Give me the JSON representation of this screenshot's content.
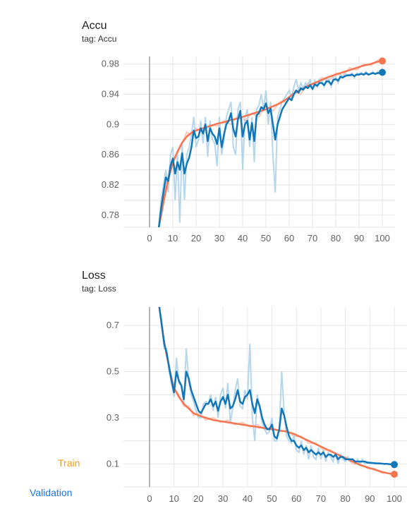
{
  "legend": {
    "train": {
      "label": "Train",
      "color": "#f29b1d"
    },
    "validation": {
      "label": "Validation",
      "color": "#1a73e8"
    }
  },
  "colors": {
    "train_line": "#f4754f",
    "train_light": "#f9c1b0",
    "val_line": "#1277b8",
    "val_light": "#a9d0e8",
    "grid": "#e6e6e6",
    "zero_axis": "#9e9e9e"
  },
  "chart_data": [
    {
      "type": "line",
      "title": "Accu",
      "subtitle": "tag: Accu",
      "xlim": [
        -10,
        103
      ],
      "ylim": [
        0.764,
        0.99
      ],
      "xticks": [
        0,
        10,
        20,
        30,
        40,
        50,
        60,
        70,
        80,
        90,
        100
      ],
      "yticks": [
        0.78,
        0.82,
        0.86,
        0.9,
        0.94,
        0.98
      ],
      "ytick_labels": [
        "0.78",
        "0.82",
        "0.86",
        "0.9",
        "0.94",
        "0.98"
      ],
      "grid": true,
      "series": [
        {
          "key": "train",
          "color_key": "train",
          "x": [
            4,
            5,
            6,
            7,
            8,
            9,
            10,
            12,
            14,
            16,
            18,
            20,
            23,
            26,
            29,
            32,
            35,
            38,
            41,
            44,
            47,
            50,
            53,
            56,
            59,
            62,
            65,
            68,
            71,
            74,
            77,
            80,
            83,
            86,
            89,
            92,
            95,
            98,
            100
          ],
          "y": [
            0.764,
            0.78,
            0.797,
            0.812,
            0.826,
            0.838,
            0.85,
            0.864,
            0.876,
            0.884,
            0.889,
            0.892,
            0.895,
            0.898,
            0.901,
            0.903,
            0.906,
            0.908,
            0.911,
            0.914,
            0.917,
            0.92,
            0.924,
            0.928,
            0.934,
            0.941,
            0.946,
            0.951,
            0.955,
            0.959,
            0.963,
            0.966,
            0.969,
            0.972,
            0.975,
            0.978,
            0.98,
            0.983,
            0.984
          ],
          "raw": [
            0.764,
            0.785,
            0.8,
            0.82,
            0.83,
            0.845,
            0.848,
            0.862,
            0.875,
            0.89,
            0.885,
            0.895,
            0.89,
            0.9,
            0.898,
            0.905,
            0.9,
            0.912,
            0.905,
            0.915,
            0.91,
            0.925,
            0.918,
            0.93,
            0.93,
            0.945,
            0.94,
            0.955,
            0.952,
            0.962,
            0.958,
            0.968,
            0.965,
            0.975,
            0.972,
            0.98,
            0.978,
            0.985,
            0.984
          ]
        },
        {
          "key": "validation",
          "color_key": "validation",
          "x": [
            4,
            5,
            6,
            7,
            8,
            9,
            10,
            11,
            12,
            13,
            14,
            15,
            16,
            17,
            18,
            19,
            20,
            21,
            22,
            23,
            24,
            25,
            26,
            27,
            28,
            29,
            30,
            31,
            32,
            33,
            34,
            35,
            36,
            37,
            38,
            39,
            40,
            41,
            42,
            43,
            44,
            45,
            46,
            47,
            48,
            49,
            50,
            51,
            52,
            53,
            54,
            55,
            56,
            57,
            58,
            59,
            60,
            61,
            62,
            63,
            64,
            65,
            66,
            67,
            68,
            69,
            70,
            71,
            72,
            73,
            74,
            75,
            76,
            77,
            78,
            79,
            80,
            81,
            82,
            83,
            84,
            85,
            86,
            87,
            88,
            89,
            90,
            91,
            92,
            93,
            94,
            95,
            96,
            97,
            98,
            99,
            100
          ],
          "y": [
            0.764,
            0.79,
            0.81,
            0.83,
            0.825,
            0.845,
            0.855,
            0.835,
            0.85,
            0.84,
            0.862,
            0.835,
            0.848,
            0.856,
            0.87,
            0.892,
            0.882,
            0.884,
            0.895,
            0.888,
            0.9,
            0.878,
            0.895,
            0.888,
            0.884,
            0.874,
            0.895,
            0.87,
            0.887,
            0.9,
            0.905,
            0.915,
            0.894,
            0.884,
            0.907,
            0.918,
            0.884,
            0.9,
            0.905,
            0.88,
            0.902,
            0.878,
            0.912,
            0.915,
            0.923,
            0.92,
            0.928,
            0.915,
            0.921,
            0.9,
            0.88,
            0.9,
            0.91,
            0.92,
            0.925,
            0.93,
            0.935,
            0.932,
            0.94,
            0.945,
            0.942,
            0.948,
            0.946,
            0.95,
            0.948,
            0.952,
            0.947,
            0.953,
            0.951,
            0.955,
            0.955,
            0.952,
            0.957,
            0.957,
            0.953,
            0.959,
            0.96,
            0.958,
            0.963,
            0.962,
            0.964,
            0.965,
            0.965,
            0.966,
            0.964,
            0.966,
            0.966,
            0.967,
            0.966,
            0.968,
            0.966,
            0.967,
            0.968,
            0.967,
            0.968,
            0.968,
            0.969
          ],
          "raw": [
            0.764,
            0.8,
            0.82,
            0.84,
            0.81,
            0.86,
            0.87,
            0.8,
            0.862,
            0.77,
            0.875,
            0.8,
            0.86,
            0.87,
            0.886,
            0.91,
            0.87,
            0.88,
            0.905,
            0.875,
            0.91,
            0.857,
            0.905,
            0.88,
            0.875,
            0.845,
            0.91,
            0.86,
            0.88,
            0.91,
            0.92,
            0.93,
            0.87,
            0.86,
            0.92,
            0.93,
            0.84,
            0.91,
            0.92,
            0.87,
            0.91,
            0.85,
            0.92,
            0.925,
            0.94,
            0.92,
            0.945,
            0.9,
            0.93,
            0.86,
            0.81,
            0.91,
            0.92,
            0.93,
            0.935,
            0.94,
            0.945,
            0.935,
            0.95,
            0.96,
            0.945,
            0.955,
            0.948,
            0.955,
            0.95,
            0.96,
            0.945,
            0.958,
            0.95,
            0.96,
            0.958,
            0.95,
            0.96,
            0.96,
            0.95,
            0.962,
            0.963,
            0.955,
            0.966,
            0.962,
            0.967,
            0.966,
            0.966,
            0.968,
            0.962,
            0.968,
            0.967,
            0.969,
            0.965,
            0.97,
            0.965,
            0.968,
            0.97,
            0.966,
            0.97,
            0.968,
            0.969
          ]
        }
      ]
    },
    {
      "type": "line",
      "title": "Loss",
      "subtitle": "tag: Loss",
      "xlim": [
        -10,
        103
      ],
      "ylim": [
        0.0,
        0.78
      ],
      "xticks": [
        0,
        10,
        20,
        30,
        40,
        50,
        60,
        70,
        80,
        90,
        100
      ],
      "yticks": [
        0.1,
        0.3,
        0.5,
        0.7
      ],
      "ytick_labels": [
        "0.1",
        "0.3",
        "0.5",
        "0.7"
      ],
      "grid": true,
      "series": [
        {
          "key": "train",
          "color_key": "train",
          "x": [
            4,
            5,
            6,
            7,
            8,
            9,
            10,
            12,
            14,
            16,
            18,
            20,
            23,
            26,
            29,
            32,
            35,
            38,
            41,
            44,
            47,
            50,
            53,
            56,
            59,
            62,
            65,
            68,
            71,
            74,
            77,
            80,
            83,
            86,
            89,
            92,
            95,
            98,
            100
          ],
          "y": [
            0.78,
            0.7,
            0.63,
            0.57,
            0.52,
            0.47,
            0.43,
            0.39,
            0.36,
            0.34,
            0.32,
            0.31,
            0.3,
            0.29,
            0.285,
            0.28,
            0.275,
            0.27,
            0.265,
            0.26,
            0.255,
            0.25,
            0.245,
            0.24,
            0.23,
            0.215,
            0.2,
            0.185,
            0.17,
            0.155,
            0.14,
            0.125,
            0.11,
            0.095,
            0.085,
            0.075,
            0.065,
            0.058,
            0.055
          ],
          "raw": [
            0.78,
            0.72,
            0.62,
            0.58,
            0.5,
            0.48,
            0.42,
            0.4,
            0.35,
            0.35,
            0.31,
            0.32,
            0.29,
            0.3,
            0.28,
            0.29,
            0.27,
            0.28,
            0.26,
            0.27,
            0.25,
            0.26,
            0.24,
            0.245,
            0.22,
            0.22,
            0.19,
            0.19,
            0.16,
            0.16,
            0.13,
            0.13,
            0.1,
            0.1,
            0.08,
            0.08,
            0.06,
            0.06,
            0.055
          ]
        },
        {
          "key": "validation",
          "color_key": "validation",
          "x": [
            4,
            5,
            6,
            7,
            8,
            9,
            10,
            11,
            12,
            13,
            14,
            15,
            16,
            17,
            18,
            19,
            20,
            21,
            22,
            23,
            24,
            25,
            26,
            27,
            28,
            29,
            30,
            31,
            32,
            33,
            34,
            35,
            36,
            37,
            38,
            39,
            40,
            41,
            42,
            43,
            44,
            45,
            46,
            47,
            48,
            49,
            50,
            51,
            52,
            53,
            54,
            55,
            56,
            57,
            58,
            59,
            60,
            61,
            62,
            63,
            64,
            65,
            66,
            67,
            68,
            69,
            70,
            71,
            72,
            73,
            74,
            75,
            76,
            77,
            78,
            79,
            80,
            81,
            82,
            83,
            84,
            85,
            86,
            87,
            88,
            89,
            90,
            91,
            92,
            93,
            94,
            95,
            96,
            97,
            98,
            99,
            100
          ],
          "y": [
            0.78,
            0.7,
            0.62,
            0.58,
            0.52,
            0.46,
            0.41,
            0.5,
            0.46,
            0.44,
            0.38,
            0.5,
            0.47,
            0.42,
            0.39,
            0.36,
            0.33,
            0.32,
            0.34,
            0.36,
            0.36,
            0.38,
            0.35,
            0.37,
            0.33,
            0.37,
            0.39,
            0.36,
            0.4,
            0.34,
            0.35,
            0.38,
            0.42,
            0.37,
            0.36,
            0.39,
            0.4,
            0.42,
            0.36,
            0.32,
            0.38,
            0.35,
            0.3,
            0.27,
            0.25,
            0.25,
            0.27,
            0.22,
            0.21,
            0.25,
            0.34,
            0.31,
            0.26,
            0.22,
            0.2,
            0.2,
            0.18,
            0.17,
            0.18,
            0.16,
            0.17,
            0.15,
            0.16,
            0.15,
            0.14,
            0.15,
            0.14,
            0.15,
            0.13,
            0.14,
            0.14,
            0.13,
            0.14,
            0.12,
            0.13,
            0.13,
            0.12,
            0.12,
            0.12,
            0.12,
            0.11,
            0.11,
            0.11,
            0.11,
            0.11,
            0.105,
            0.105,
            0.104,
            0.103,
            0.102,
            0.102,
            0.101,
            0.1,
            0.1,
            0.099,
            0.098,
            0.097
          ],
          "raw": [
            0.78,
            0.72,
            0.6,
            0.6,
            0.5,
            0.45,
            0.39,
            0.56,
            0.45,
            0.44,
            0.36,
            0.6,
            0.46,
            0.4,
            0.37,
            0.33,
            0.3,
            0.3,
            0.36,
            0.37,
            0.36,
            0.4,
            0.33,
            0.39,
            0.3,
            0.4,
            0.43,
            0.34,
            0.45,
            0.28,
            0.34,
            0.42,
            0.47,
            0.35,
            0.34,
            0.42,
            0.38,
            0.62,
            0.3,
            0.2,
            0.4,
            0.34,
            0.28,
            0.25,
            0.23,
            0.24,
            0.3,
            0.2,
            0.2,
            0.25,
            0.5,
            0.32,
            0.22,
            0.2,
            0.19,
            0.22,
            0.16,
            0.15,
            0.2,
            0.14,
            0.18,
            0.12,
            0.18,
            0.13,
            0.12,
            0.17,
            0.12,
            0.16,
            0.11,
            0.15,
            0.13,
            0.11,
            0.15,
            0.1,
            0.14,
            0.12,
            0.11,
            0.13,
            0.11,
            0.12,
            0.1,
            0.12,
            0.1,
            0.12,
            0.1,
            0.11,
            0.1,
            0.105,
            0.1,
            0.102,
            0.1,
            0.102,
            0.098,
            0.1,
            0.097,
            0.098,
            0.097
          ]
        }
      ]
    }
  ]
}
